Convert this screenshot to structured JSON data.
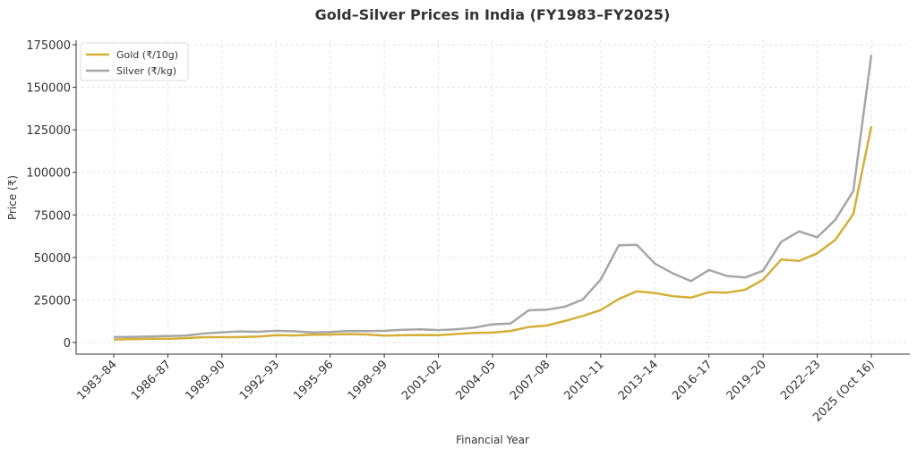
{
  "chart_data": {
    "type": "line",
    "title": "Gold–Silver Prices in India (FY1983–FY2025)",
    "xlabel": "Financial Year",
    "ylabel": "Price (₹)",
    "ylim": [
      0,
      175000
    ],
    "yticks": [
      0,
      25000,
      50000,
      75000,
      100000,
      125000,
      150000,
      175000
    ],
    "grid": true,
    "legend_position": "top-left",
    "x": [
      "1983–84",
      "1984–85",
      "1985–86",
      "1986–87",
      "1987–88",
      "1988–89",
      "1989–90",
      "1990–91",
      "1991–92",
      "1992–93",
      "1993–94",
      "1994–95",
      "1995–96",
      "1996–97",
      "1997–98",
      "1998–99",
      "1999–00",
      "2000–01",
      "2001–02",
      "2002–03",
      "2003–04",
      "2004–05",
      "2005–06",
      "2006–07",
      "2007–08",
      "2008–09",
      "2009–10",
      "2010–11",
      "2011–12",
      "2012–13",
      "2013–14",
      "2014–15",
      "2015–16",
      "2016–17",
      "2017–18",
      "2018–19",
      "2019–20",
      "2020–21",
      "2021–22",
      "2022–23",
      "2023–24",
      "2024–25",
      "2025 (Oct 16)"
    ],
    "xtick_labels": [
      "1983–84",
      "1986–87",
      "1989–90",
      "1992–93",
      "1995–96",
      "1998–99",
      "2001–02",
      "2004–05",
      "2007–08",
      "2010–11",
      "2013–14",
      "2016–17",
      "2019–20",
      "2022–23",
      "2025 (Oct 16)"
    ],
    "series": [
      {
        "name": "Gold (₹/10g)",
        "color": "#d4af37",
        "values": [
          1800,
          1970,
          2130,
          2140,
          2570,
          3130,
          3140,
          3200,
          3466,
          4334,
          4140,
          4598,
          4680,
          4958,
          4725,
          4045,
          4234,
          4400,
          4300,
          4990,
          5600,
          5850,
          6800,
          9100,
          10000,
          12600,
          15600,
          19100,
          25600,
          30100,
          29100,
          27200,
          26400,
          29600,
          29300,
          31000,
          36900,
          48700,
          48000,
          52400,
          60300,
          75500,
          127000
        ]
      },
      {
        "name": "Silver (₹/kg)",
        "color": "#a6a6a6",
        "values": [
          3200,
          3300,
          3500,
          3800,
          4100,
          5300,
          6000,
          6500,
          6300,
          6900,
          6600,
          5900,
          6200,
          6800,
          6700,
          6900,
          7500,
          7800,
          7300,
          7800,
          8800,
          10700,
          11200,
          18900,
          19300,
          21000,
          25200,
          37100,
          57100,
          57400,
          46400,
          40600,
          36100,
          42600,
          39100,
          38200,
          42200,
          59200,
          65300,
          61800,
          72100,
          89000,
          169000
        ]
      }
    ]
  }
}
